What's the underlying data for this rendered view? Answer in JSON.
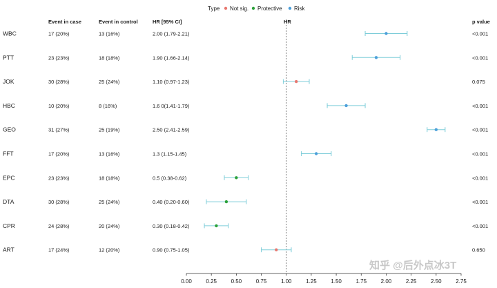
{
  "legend": {
    "title": "Type",
    "items": [
      {
        "label": "Not sig.",
        "color": "#E8776F"
      },
      {
        "label": "Protective",
        "color": "#2CA13A"
      },
      {
        "label": "Risk",
        "color": "#4C9FDA"
      }
    ]
  },
  "columns": {
    "event_case": "Event in case",
    "event_control": "Event in control",
    "hr_ci": "HR [95% CI]",
    "hr": "HR",
    "p": "p value"
  },
  "watermark": "知乎 @后外点冰3T",
  "colors": {
    "ci_line": "#7ECDD9",
    "ref_line": "#6b6b6b",
    "axis": "#333333"
  },
  "chart_data": {
    "type": "forest",
    "x_ticks": [
      "0.00",
      "0.25",
      "0.50",
      "0.75",
      "1.00",
      "1.25",
      "1.50",
      "1.75",
      "2.00",
      "2.25",
      "2.50",
      "2.75"
    ],
    "xlim": [
      0,
      2.75
    ],
    "reference": 1.0,
    "rows": [
      {
        "label": "WBC",
        "event_case": "17 (20%)",
        "event_control": "13 (16%)",
        "hr_text": "2.00 (1.79-2.21)",
        "hr": 2.0,
        "lo": 1.79,
        "hi": 2.21,
        "p": "<0.001",
        "type": "Risk"
      },
      {
        "label": "PTT",
        "event_case": "23 (23%)",
        "event_control": "18 (18%)",
        "hr_text": "1.90 (1.66-2.14)",
        "hr": 1.9,
        "lo": 1.66,
        "hi": 2.14,
        "p": "<0.001",
        "type": "Risk"
      },
      {
        "label": "JOK",
        "event_case": "30 (28%)",
        "event_control": "25 (24%)",
        "hr_text": "1.10 (0.97-1.23)",
        "hr": 1.1,
        "lo": 0.97,
        "hi": 1.23,
        "p": "0.075",
        "type": "Not sig."
      },
      {
        "label": "HBC",
        "event_case": "10 (20%)",
        "event_control": "8 (16%)",
        "hr_text": "1.6 0(1.41-1.79)",
        "hr": 1.6,
        "lo": 1.41,
        "hi": 1.79,
        "p": "<0.001",
        "type": "Risk"
      },
      {
        "label": "GEO",
        "event_case": "31 (27%)",
        "event_control": "25 (19%)",
        "hr_text": "2.50 (2.41-2.59)",
        "hr": 2.5,
        "lo": 2.41,
        "hi": 2.59,
        "p": "<0.001",
        "type": "Risk"
      },
      {
        "label": "FFT",
        "event_case": "17 (20%)",
        "event_control": "13 (16%)",
        "hr_text": "1.3 (1.15-1.45)",
        "hr": 1.3,
        "lo": 1.15,
        "hi": 1.45,
        "p": "<0.001",
        "type": "Risk"
      },
      {
        "label": "EPC",
        "event_case": "23 (23%)",
        "event_control": "18 (18%)",
        "hr_text": "0.5 (0.38-0.62)",
        "hr": 0.5,
        "lo": 0.38,
        "hi": 0.62,
        "p": "<0.001",
        "type": "Protective"
      },
      {
        "label": "DTA",
        "event_case": "30 (28%)",
        "event_control": "25 (24%)",
        "hr_text": "0.40 (0.20-0.60)",
        "hr": 0.4,
        "lo": 0.2,
        "hi": 0.6,
        "p": "<0.001",
        "type": "Protective"
      },
      {
        "label": "CPR",
        "event_case": "24 (28%)",
        "event_control": "20 (24%)",
        "hr_text": "0.30 (0.18-0.42)",
        "hr": 0.3,
        "lo": 0.18,
        "hi": 0.42,
        "p": "<0.001",
        "type": "Protective"
      },
      {
        "label": "ART",
        "event_case": "17 (24%)",
        "event_control": "12 (20%)",
        "hr_text": "0.90 (0.75-1.05)",
        "hr": 0.9,
        "lo": 0.75,
        "hi": 1.05,
        "p": "0.650",
        "type": "Not sig."
      }
    ]
  }
}
